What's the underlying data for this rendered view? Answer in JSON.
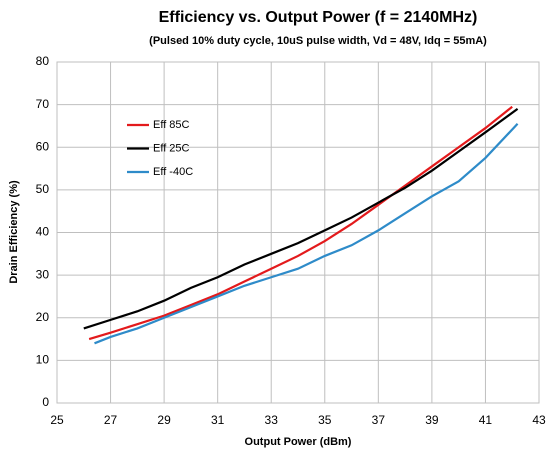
{
  "chart_data": {
    "type": "line",
    "title": "Efficiency vs. Output Power (f = 2140MHz)",
    "subtitle": "(Pulsed 10% duty cycle, 10uS pulse width, Vd = 48V, Idq = 55mA)",
    "x_label": "Output Power (dBm)",
    "y_label": "Drain Efficiency (%)",
    "xlim": [
      25,
      43
    ],
    "xticks": [
      25,
      27,
      29,
      31,
      33,
      35,
      37,
      39,
      41,
      43
    ],
    "ylim": [
      0,
      80
    ],
    "yticks": [
      0,
      10,
      20,
      30,
      40,
      50,
      60,
      70,
      80
    ],
    "grid": true,
    "legend": "upper left",
    "series": [
      {
        "name": "Eff 85C",
        "color": "#e31a1c",
        "x": [
          26.2,
          27,
          28,
          29,
          30,
          31,
          32,
          33,
          34,
          35,
          36,
          37,
          38,
          39,
          40,
          41,
          42
        ],
        "values": [
          15,
          16.5,
          18.5,
          20.5,
          23,
          25.5,
          28.5,
          31.5,
          34.5,
          38,
          42,
          46.5,
          51,
          55.5,
          60,
          64.5,
          69.5
        ]
      },
      {
        "name": "Eff 25C",
        "color": "#000000",
        "x": [
          26,
          27,
          28,
          29,
          30,
          31,
          32,
          33,
          34,
          35,
          36,
          37,
          38,
          39,
          40,
          41,
          42.2
        ],
        "values": [
          17.5,
          19.5,
          21.5,
          24,
          27,
          29.5,
          32.5,
          35,
          37.5,
          40.5,
          43.5,
          47,
          50.5,
          54.5,
          59,
          63.5,
          69
        ]
      },
      {
        "name": "Eff -40C",
        "color": "#2e8bc9",
        "x": [
          26.4,
          27,
          28,
          29,
          30,
          31,
          32,
          33,
          34,
          35,
          36,
          37,
          38,
          39,
          40,
          41,
          42.2
        ],
        "values": [
          14,
          15.5,
          17.5,
          20,
          22.5,
          25,
          27.5,
          29.5,
          31.5,
          34.5,
          37,
          40.5,
          44.5,
          48.5,
          52,
          57.5,
          65.5
        ]
      }
    ]
  }
}
